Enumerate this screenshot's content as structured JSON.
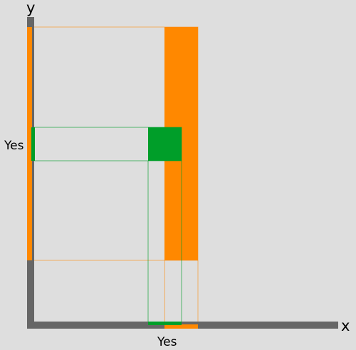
{
  "axes": {
    "x_label": "x",
    "y_label": "y",
    "axis_color": "#666666"
  },
  "markers": {
    "x_value_label": "Yes",
    "y_value_label": "Yes"
  },
  "colors": {
    "orange": "#ff8800",
    "green": "#009e29",
    "background": "#dedede"
  }
}
